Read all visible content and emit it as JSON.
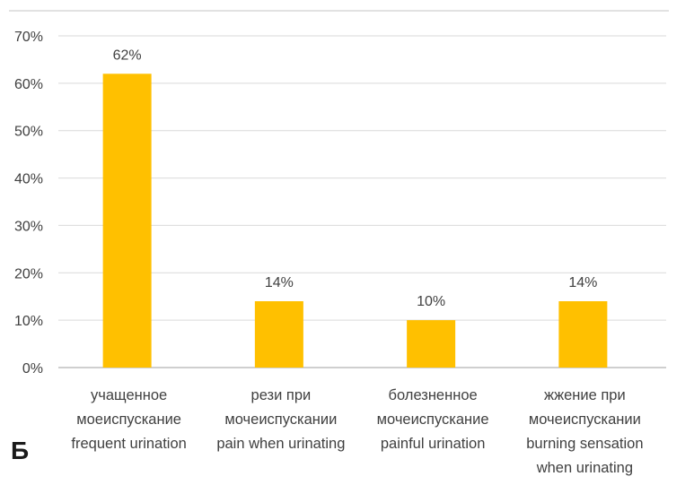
{
  "chart_data": {
    "type": "bar",
    "categories": [
      [
        "учащенное",
        "моеиспускание",
        "frequent urination"
      ],
      [
        "рези при",
        "мочеиспускании",
        "pain when urinating"
      ],
      [
        "болезненное",
        "мочеиспускание",
        "painful urination"
      ],
      [
        "жжение при",
        "мочеиспускании",
        "burning sensation",
        "when urinating"
      ]
    ],
    "values": [
      62,
      14,
      10,
      14
    ],
    "data_labels": [
      "62%",
      "14%",
      "10%",
      "14%"
    ],
    "yticks": [
      "0%",
      "10%",
      "20%",
      "30%",
      "40%",
      "50%",
      "60%",
      "70%"
    ],
    "ylim": [
      0,
      70
    ],
    "grid": true,
    "legend": "none",
    "bar_color": "#FFC000",
    "panel_label": "Б"
  }
}
